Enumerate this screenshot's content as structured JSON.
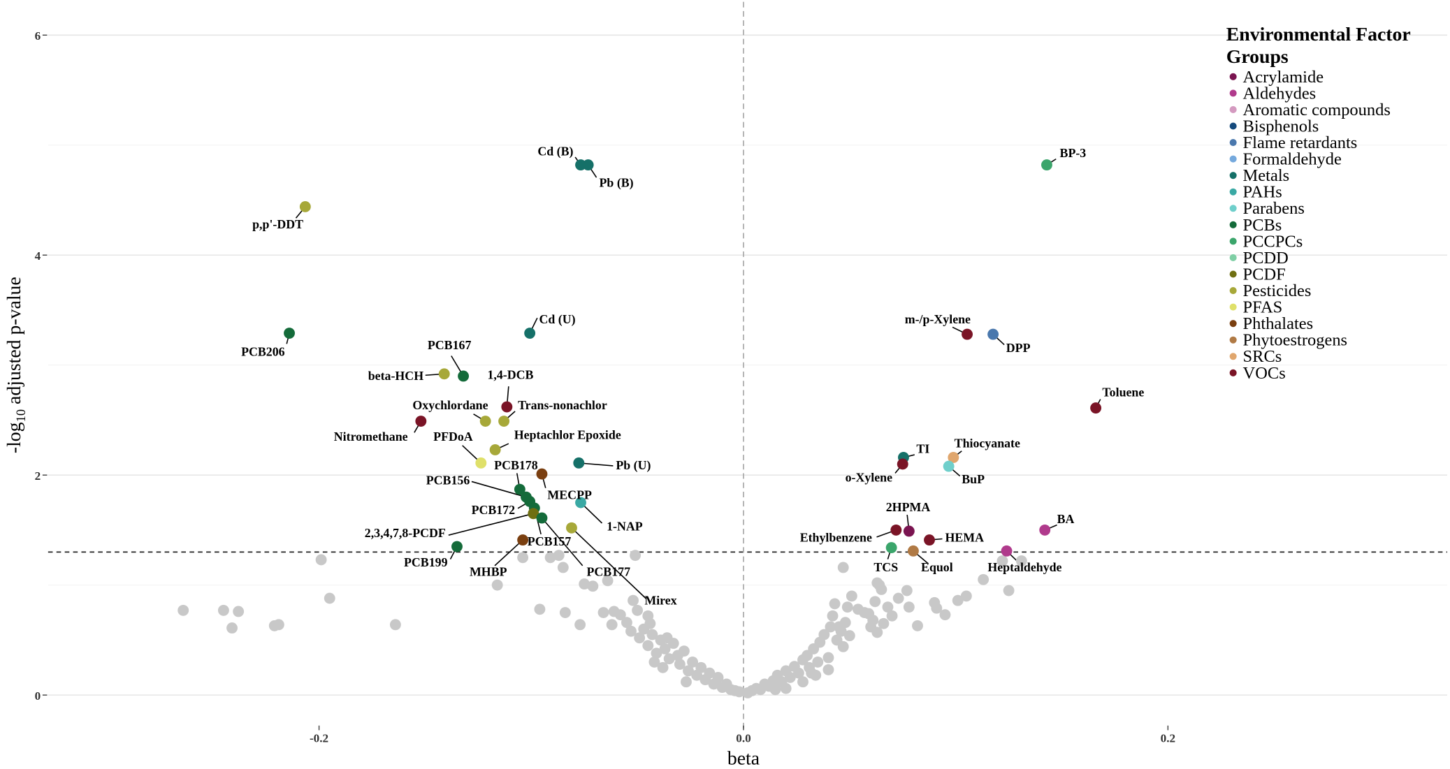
{
  "chart_data": {
    "type": "scatter",
    "title": "",
    "xlabel": "beta",
    "ylabel": "-log10 adjusted p-value",
    "xlim": [
      -0.33,
      0.33
    ],
    "ylim": [
      -0.1,
      6.2
    ],
    "x_ticks": [
      -0.2,
      0.0,
      0.2
    ],
    "x_tick_labels": [
      "-0.2",
      "0.0",
      "0.2"
    ],
    "y_ticks": [
      0,
      2,
      4,
      6
    ],
    "y_tick_labels": [
      "0",
      "2",
      "4",
      "6"
    ],
    "grid": "horizontal",
    "significance_threshold": 1.3,
    "zero_line": 0,
    "legend": {
      "title": "Environmental Factor Groups",
      "title_lines": [
        "Environmental Factor",
        "Groups"
      ],
      "placement": "top-right",
      "groups": [
        {
          "name": "Acrylamide",
          "color": "#7a1450"
        },
        {
          "name": "Aldehydes",
          "color": "#b03a8c"
        },
        {
          "name": "Aromatic compounds",
          "color": "#d49ac0"
        },
        {
          "name": "Bisphenols",
          "color": "#154a7d"
        },
        {
          "name": "Flame retardants",
          "color": "#4a78ad"
        },
        {
          "name": "Formaldehyde",
          "color": "#75a9dd"
        },
        {
          "name": "Metals",
          "color": "#157068"
        },
        {
          "name": "PAHs",
          "color": "#3aa9a4"
        },
        {
          "name": "Parabens",
          "color": "#6fcfcb"
        },
        {
          "name": "PCBs",
          "color": "#146b3a"
        },
        {
          "name": "PCCPCs",
          "color": "#3ba56b"
        },
        {
          "name": "PCDD",
          "color": "#7fcfa5"
        },
        {
          "name": "PCDF",
          "color": "#6f6f12"
        },
        {
          "name": "Pesticides",
          "color": "#a7a839"
        },
        {
          "name": "PFAS",
          "color": "#dfe06a"
        },
        {
          "name": "Phthalates",
          "color": "#7a3f10"
        },
        {
          "name": "Phytoestrogens",
          "color": "#b07a45"
        },
        {
          "name": "SRCs",
          "color": "#e0a66d"
        },
        {
          "name": "VOCs",
          "color": "#7a1426"
        }
      ]
    },
    "nonsignificant_color": "#c8c8c8",
    "significant_points": [
      {
        "label": "Cd (B)",
        "group": "Metals",
        "beta": -0.0767,
        "y": 4.82
      },
      {
        "label": "Pb (B)",
        "group": "Metals",
        "beta": -0.0732,
        "y": 4.82
      },
      {
        "label": "p,p'-DDT",
        "group": "Pesticides",
        "beta": -0.2065,
        "y": 4.44
      },
      {
        "label": "PCB206",
        "group": "PCBs",
        "beta": -0.214,
        "y": 3.29
      },
      {
        "label": "Cd (U)",
        "group": "Metals",
        "beta": -0.1007,
        "y": 3.29
      },
      {
        "label": "beta-HCH",
        "group": "Pesticides",
        "beta": -0.141,
        "y": 2.92
      },
      {
        "label": "PCB167",
        "group": "PCBs",
        "beta": -0.132,
        "y": 2.9
      },
      {
        "label": "1,4-DCB",
        "group": "VOCs",
        "beta": -0.1115,
        "y": 2.62
      },
      {
        "label": "Oxychlordane",
        "group": "Pesticides",
        "beta": -0.1216,
        "y": 2.49
      },
      {
        "label": "Trans-nonachlor",
        "group": "Pesticides",
        "beta": -0.1129,
        "y": 2.49
      },
      {
        "label": "Nitromethane",
        "group": "VOCs",
        "beta": -0.152,
        "y": 2.49
      },
      {
        "label": "Heptachlor Epoxide",
        "group": "Pesticides",
        "beta": -0.117,
        "y": 2.23
      },
      {
        "label": "PFDoA",
        "group": "PFAS",
        "beta": -0.1237,
        "y": 2.11
      },
      {
        "label": "Pb (U)",
        "group": "Metals",
        "beta": -0.0776,
        "y": 2.11
      },
      {
        "label": "MECPP",
        "group": "Phthalates",
        "beta": -0.095,
        "y": 2.01
      },
      {
        "label": "PCB178",
        "group": "PCBs",
        "beta": -0.1054,
        "y": 1.87
      },
      {
        "label": "PCB156",
        "group": "PCBs",
        "beta": -0.1024,
        "y": 1.8
      },
      {
        "label": "PCB172",
        "group": "PCBs",
        "beta": -0.1007,
        "y": 1.76
      },
      {
        "label": "1-NAP",
        "group": "PAHs",
        "beta": -0.0767,
        "y": 1.75
      },
      {
        "label": "PCB157",
        "group": "PCBs",
        "beta": -0.0985,
        "y": 1.7
      },
      {
        "label": "2,3,4,7,8-PCDF",
        "group": "PCDF",
        "beta": -0.099,
        "y": 1.65
      },
      {
        "label": "PCB177",
        "group": "PCBs",
        "beta": -0.095,
        "y": 1.61
      },
      {
        "label": "Mirex",
        "group": "Pesticides",
        "beta": -0.081,
        "y": 1.52
      },
      {
        "label": "MHBP",
        "group": "Phthalates",
        "beta": -0.104,
        "y": 1.41
      },
      {
        "label": "PCB199",
        "group": "PCBs",
        "beta": -0.135,
        "y": 1.35
      },
      {
        "label": "BP-3",
        "group": "PCCPCs",
        "beta": 0.1429,
        "y": 4.82
      },
      {
        "label": "m-/p-Xylene",
        "group": "VOCs",
        "beta": 0.1054,
        "y": 3.28
      },
      {
        "label": "DPP",
        "group": "Flame retardants",
        "beta": 0.1176,
        "y": 3.28
      },
      {
        "label": "Toluene",
        "group": "VOCs",
        "beta": 0.166,
        "y": 2.61
      },
      {
        "label": "TI",
        "group": "Metals",
        "beta": 0.0754,
        "y": 2.16
      },
      {
        "label": "o-Xylene",
        "group": "VOCs",
        "beta": 0.075,
        "y": 2.1
      },
      {
        "label": "Thiocyanate",
        "group": "SRCs",
        "beta": 0.0989,
        "y": 2.16
      },
      {
        "label": "BuP",
        "group": "Parabens",
        "beta": 0.0967,
        "y": 2.08
      },
      {
        "label": "2HPMA",
        "group": "Acrylamide",
        "beta": 0.078,
        "y": 1.49
      },
      {
        "label": "Ethylbenzene",
        "group": "VOCs",
        "beta": 0.0719,
        "y": 1.5
      },
      {
        "label": "HEMA",
        "group": "VOCs",
        "beta": 0.0876,
        "y": 1.41
      },
      {
        "label": "BA",
        "group": "Aldehydes",
        "beta": 0.142,
        "y": 1.5
      },
      {
        "label": "Heptaldehyde",
        "group": "Aldehydes",
        "beta": 0.124,
        "y": 1.31
      },
      {
        "label": "TCS",
        "group": "PCCPCs",
        "beta": 0.0697,
        "y": 1.34
      },
      {
        "label": "Equol",
        "group": "Phytoestrogens",
        "beta": 0.08,
        "y": 1.31
      }
    ],
    "nonsignificant_points": [
      [
        -0.264,
        0.77
      ],
      [
        -0.245,
        0.77
      ],
      [
        -0.238,
        0.76
      ],
      [
        -0.241,
        0.61
      ],
      [
        -0.221,
        0.63
      ],
      [
        -0.219,
        0.64
      ],
      [
        -0.195,
        0.88
      ],
      [
        -0.199,
        1.23
      ],
      [
        -0.164,
        0.64
      ],
      [
        -0.116,
        1.0
      ],
      [
        -0.104,
        1.25
      ],
      [
        -0.096,
        0.78
      ],
      [
        -0.084,
        0.75
      ],
      [
        -0.091,
        1.25
      ],
      [
        -0.087,
        1.27
      ],
      [
        -0.085,
        1.16
      ],
      [
        -0.077,
        0.64
      ],
      [
        -0.075,
        1.01
      ],
      [
        -0.071,
        0.99
      ],
      [
        -0.064,
        1.04
      ],
      [
        -0.062,
        0.64
      ],
      [
        -0.051,
        1.27
      ],
      [
        -0.052,
        0.86
      ],
      [
        -0.05,
        0.77
      ],
      [
        -0.066,
        0.75
      ],
      [
        -0.061,
        0.76
      ],
      [
        -0.058,
        0.73
      ],
      [
        -0.055,
        0.66
      ],
      [
        -0.053,
        0.58
      ],
      [
        -0.049,
        0.52
      ],
      [
        -0.047,
        0.6
      ],
      [
        -0.045,
        0.45
      ],
      [
        -0.043,
        0.55
      ],
      [
        -0.041,
        0.38
      ],
      [
        -0.039,
        0.5
      ],
      [
        -0.037,
        0.42
      ],
      [
        -0.035,
        0.33
      ],
      [
        -0.033,
        0.47
      ],
      [
        -0.031,
        0.36
      ],
      [
        -0.03,
        0.28
      ],
      [
        -0.028,
        0.4
      ],
      [
        -0.026,
        0.22
      ],
      [
        -0.024,
        0.3
      ],
      [
        -0.022,
        0.18
      ],
      [
        -0.02,
        0.25
      ],
      [
        -0.018,
        0.14
      ],
      [
        -0.016,
        0.2
      ],
      [
        -0.014,
        0.1
      ],
      [
        -0.012,
        0.16
      ],
      [
        -0.01,
        0.07
      ],
      [
        -0.008,
        0.1
      ],
      [
        -0.006,
        0.05
      ],
      [
        -0.004,
        0.04
      ],
      [
        -0.002,
        0.03
      ],
      [
        -0.045,
        0.72
      ],
      [
        -0.042,
        0.3
      ],
      [
        -0.036,
        0.52
      ],
      [
        -0.027,
        0.12
      ],
      [
        -0.044,
        0.65
      ],
      [
        -0.038,
        0.25
      ],
      [
        0.002,
        0.02
      ],
      [
        0.004,
        0.04
      ],
      [
        0.006,
        0.06
      ],
      [
        0.008,
        0.05
      ],
      [
        0.01,
        0.1
      ],
      [
        0.012,
        0.08
      ],
      [
        0.014,
        0.13
      ],
      [
        0.016,
        0.18
      ],
      [
        0.018,
        0.12
      ],
      [
        0.02,
        0.22
      ],
      [
        0.022,
        0.16
      ],
      [
        0.024,
        0.26
      ],
      [
        0.026,
        0.2
      ],
      [
        0.028,
        0.32
      ],
      [
        0.03,
        0.36
      ],
      [
        0.031,
        0.25
      ],
      [
        0.033,
        0.42
      ],
      [
        0.035,
        0.3
      ],
      [
        0.036,
        0.48
      ],
      [
        0.038,
        0.55
      ],
      [
        0.04,
        0.34
      ],
      [
        0.041,
        0.62
      ],
      [
        0.042,
        0.72
      ],
      [
        0.043,
        0.83
      ],
      [
        0.044,
        0.5
      ],
      [
        0.045,
        0.62
      ],
      [
        0.046,
        0.58
      ],
      [
        0.047,
        0.44
      ],
      [
        0.048,
        0.66
      ],
      [
        0.049,
        0.8
      ],
      [
        0.05,
        0.54
      ],
      [
        0.051,
        0.9
      ],
      [
        0.054,
        0.78
      ],
      [
        0.057,
        0.75
      ],
      [
        0.059,
        0.74
      ],
      [
        0.06,
        0.62
      ],
      [
        0.061,
        0.68
      ],
      [
        0.062,
        0.85
      ],
      [
        0.063,
        0.57
      ],
      [
        0.064,
        1.0
      ],
      [
        0.065,
        0.96
      ],
      [
        0.066,
        0.65
      ],
      [
        0.068,
        0.8
      ],
      [
        0.07,
        0.72
      ],
      [
        0.073,
        0.88
      ],
      [
        0.077,
        0.95
      ],
      [
        0.078,
        0.8
      ],
      [
        0.082,
        0.63
      ],
      [
        0.09,
        0.84
      ],
      [
        0.091,
        0.79
      ],
      [
        0.095,
        0.73
      ],
      [
        0.101,
        0.86
      ],
      [
        0.105,
        0.9
      ],
      [
        0.113,
        1.05
      ],
      [
        0.125,
        0.95
      ],
      [
        0.131,
        1.22
      ],
      [
        0.122,
        1.22
      ],
      [
        0.047,
        1.16
      ],
      [
        0.063,
        1.02
      ],
      [
        0.04,
        0.23
      ],
      [
        0.028,
        0.12
      ],
      [
        0.034,
        0.18
      ],
      [
        0.032,
        0.2
      ],
      [
        0.02,
        0.06
      ],
      [
        0.015,
        0.05
      ]
    ]
  }
}
